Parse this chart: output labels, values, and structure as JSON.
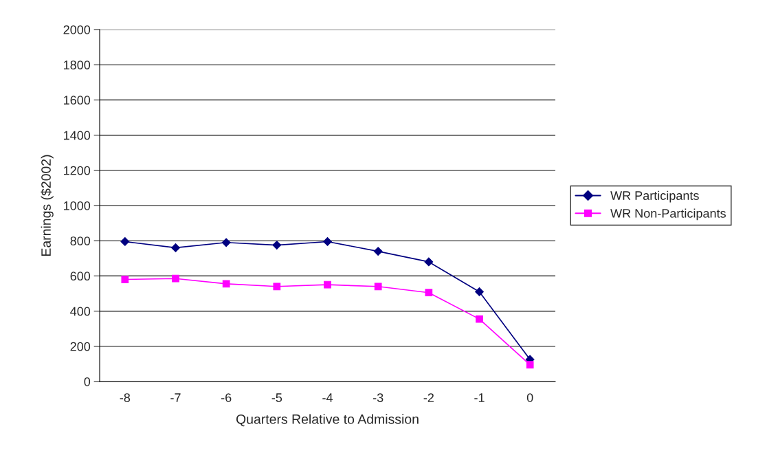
{
  "chart_data": {
    "type": "line",
    "xlabel": "Quarters Relative to Admission",
    "ylabel": "Earnings ($2002)",
    "categories": [
      "-8",
      "-7",
      "-6",
      "-5",
      "-4",
      "-3",
      "-2",
      "-1",
      "0"
    ],
    "series": [
      {
        "name": "WR Participants",
        "color": "#000080",
        "marker": "diamond",
        "values": [
          795,
          760,
          790,
          775,
          795,
          740,
          680,
          510,
          125
        ]
      },
      {
        "name": "WR Non-Participants",
        "color": "#ff00ff",
        "marker": "square",
        "values": [
          580,
          585,
          555,
          540,
          550,
          540,
          505,
          355,
          95
        ]
      }
    ],
    "ylim": [
      0,
      2000
    ],
    "yticks": [
      0,
      200,
      400,
      600,
      800,
      1000,
      1200,
      1400,
      1600,
      1800,
      2000
    ],
    "grid": "y",
    "legend": "right",
    "line_style": "solid"
  }
}
